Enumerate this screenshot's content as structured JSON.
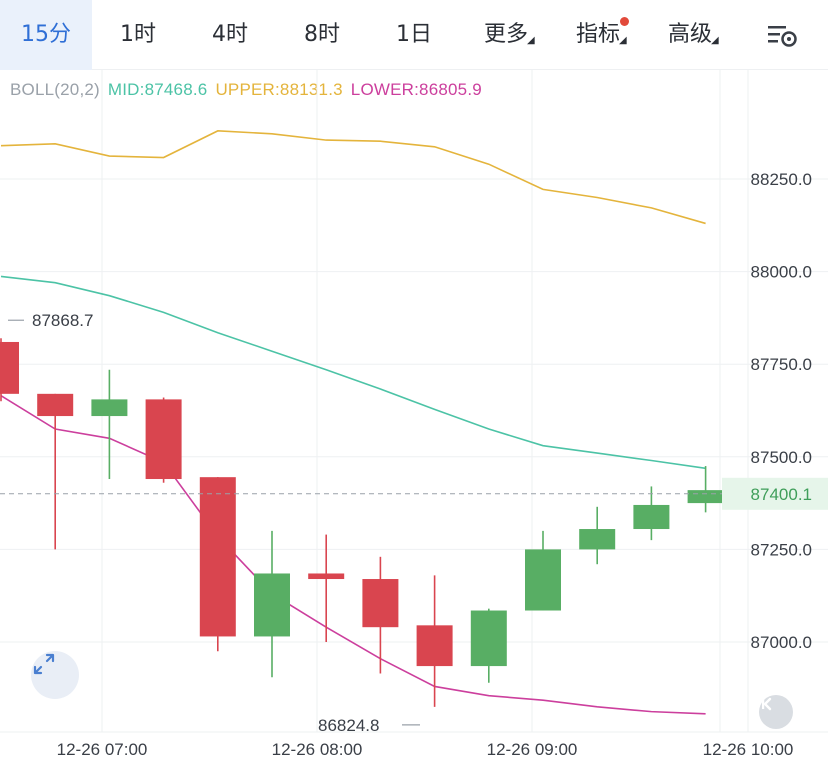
{
  "tabs": [
    {
      "label": "15分",
      "active": true
    },
    {
      "label": "1时",
      "active": false
    },
    {
      "label": "4时",
      "active": false
    },
    {
      "label": "8时",
      "active": false
    },
    {
      "label": "1日",
      "active": false
    },
    {
      "label": "更多",
      "active": false,
      "dropdown": true
    },
    {
      "label": "指标",
      "active": false,
      "dropdown": true,
      "badge": true
    },
    {
      "label": "高级",
      "active": false,
      "dropdown": true
    }
  ],
  "settings_icon": "chart-settings-icon",
  "indicator": {
    "name": "BOLL(20,2)",
    "mid_label": "MID:87468.6",
    "upper_label": "UPPER:88131.3",
    "lower_label": "LOWER:86805.9",
    "colors": {
      "name": "#9aa1a9",
      "mid": "#4cc3a6",
      "upper": "#e4b43c",
      "lower": "#cc3f9d"
    }
  },
  "chart_data": {
    "type": "candlestick",
    "y_ticks": [
      "88250.0",
      "88000.0",
      "87750.0",
      "87500.0",
      "87250.0",
      "87000.0"
    ],
    "x_ticks": [
      "12-26 07:00",
      "12-26 08:00",
      "12-26 09:00",
      "12-26 10:00"
    ],
    "current_price": "87400.1",
    "high_label": "87868.7",
    "low_label": "86824.8",
    "colors": {
      "up": "#58ae64",
      "down": "#d9454f",
      "grid": "#eef0f2",
      "price_line": "#9aa1a9",
      "price_tag_bg": "#e6f5ea",
      "price_tag_text": "#3f9e5a"
    },
    "candles": [
      {
        "t": "06:30",
        "open": 87810,
        "close": 87670,
        "high": 87820,
        "low": 87650
      },
      {
        "t": "06:45",
        "open": 87670,
        "close": 87610,
        "high": 87670,
        "low": 87250
      },
      {
        "t": "07:00",
        "open": 87610,
        "close": 87655,
        "high": 87735,
        "low": 87440
      },
      {
        "t": "07:15",
        "open": 87655,
        "close": 87440,
        "high": 87660,
        "low": 87430
      },
      {
        "t": "07:30",
        "open": 87445,
        "close": 87015,
        "high": 87445,
        "low": 86975
      },
      {
        "t": "07:45",
        "open": 87015,
        "close": 87185,
        "high": 87300,
        "low": 86905
      },
      {
        "t": "08:00",
        "open": 87185,
        "close": 87170,
        "high": 87290,
        "low": 87000
      },
      {
        "t": "08:15",
        "open": 87170,
        "close": 87040,
        "high": 87230,
        "low": 86915
      },
      {
        "t": "08:30",
        "open": 87045,
        "close": 86935,
        "high": 87180,
        "low": 86825
      },
      {
        "t": "08:45",
        "open": 86935,
        "close": 87085,
        "high": 87090,
        "low": 86890
      },
      {
        "t": "09:00",
        "open": 87085,
        "close": 87250,
        "high": 87300,
        "low": 87085
      },
      {
        "t": "09:15",
        "open": 87250,
        "close": 87305,
        "high": 87365,
        "low": 87210
      },
      {
        "t": "09:30",
        "open": 87305,
        "close": 87370,
        "high": 87420,
        "low": 87275
      },
      {
        "t": "09:45",
        "open": 87375,
        "close": 87410,
        "high": 87475,
        "low": 87350
      }
    ],
    "boll": {
      "upper": [
        88340,
        88345,
        88312,
        88308,
        88380,
        88372,
        88355,
        88352,
        88337,
        88290,
        88222,
        88200,
        88172,
        88130
      ],
      "mid": [
        87987,
        87970,
        87935,
        87890,
        87835,
        87785,
        87735,
        87683,
        87628,
        87575,
        87530,
        87510,
        87490,
        87469
      ],
      "lower": [
        87665,
        87575,
        87550,
        87485,
        87285,
        87130,
        87040,
        86955,
        86880,
        86855,
        86843,
        86825,
        86812,
        86806
      ]
    }
  },
  "controls": {
    "expand_icon": "expand-icon",
    "back_icon": "scroll-to-latest-icon"
  }
}
